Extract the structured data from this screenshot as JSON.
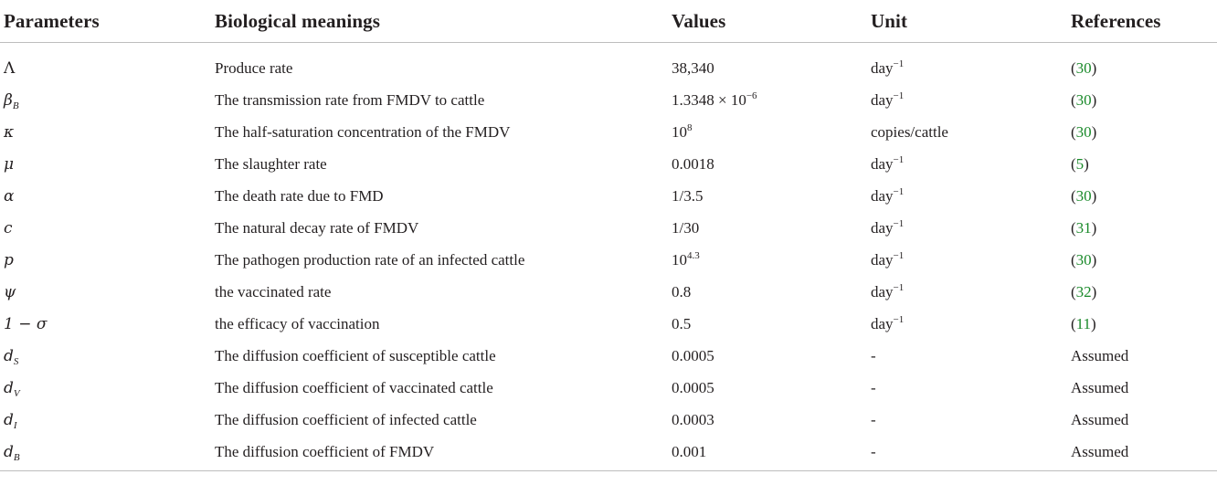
{
  "table": {
    "headers": [
      "Parameters",
      "Biological meanings",
      "Values",
      "Unit",
      "References"
    ],
    "rows": [
      {
        "param": "Λ",
        "param_sub": "",
        "meaning": "Produce rate",
        "value": "38,340",
        "value_sup": "",
        "unit": "day",
        "unit_sup": "−1",
        "ref_open": "(",
        "ref_num": "30",
        "ref_close": ")",
        "ref_text": ""
      },
      {
        "param": "β",
        "param_sub": "B",
        "meaning": "The transmission rate from FMDV to cattle",
        "value": "1.3348 × 10",
        "value_sup": "−6",
        "unit": "day",
        "unit_sup": "−1",
        "ref_open": "(",
        "ref_num": "30",
        "ref_close": ")",
        "ref_text": ""
      },
      {
        "param": "κ",
        "param_sub": "",
        "meaning": "The half-saturation concentration of the FMDV",
        "value": "10",
        "value_sup": "8",
        "unit": "copies/cattle",
        "unit_sup": "",
        "ref_open": "(",
        "ref_num": "30",
        "ref_close": ")",
        "ref_text": ""
      },
      {
        "param": "μ",
        "param_sub": "",
        "meaning": "The slaughter rate",
        "value": "0.0018",
        "value_sup": "",
        "unit": "day",
        "unit_sup": "−1",
        "ref_open": "(",
        "ref_num": "5",
        "ref_close": ")",
        "ref_text": ""
      },
      {
        "param": "α",
        "param_sub": "",
        "meaning": "The death rate due to FMD",
        "value": "1/3.5",
        "value_sup": "",
        "unit": "day",
        "unit_sup": "−1",
        "ref_open": "(",
        "ref_num": "30",
        "ref_close": ")",
        "ref_text": ""
      },
      {
        "param": "c",
        "param_sub": "",
        "meaning": "The natural decay rate of FMDV",
        "value": "1/30",
        "value_sup": "",
        "unit": "day",
        "unit_sup": "−1",
        "ref_open": "(",
        "ref_num": "31",
        "ref_close": ")",
        "ref_text": ""
      },
      {
        "param": "p",
        "param_sub": "",
        "meaning": "The pathogen production rate of an infected cattle",
        "value": "10",
        "value_sup": "4.3",
        "unit": "day",
        "unit_sup": "−1",
        "ref_open": "(",
        "ref_num": "30",
        "ref_close": ")",
        "ref_text": ""
      },
      {
        "param": "ψ",
        "param_sub": "",
        "meaning": "the vaccinated rate",
        "value": "0.8",
        "value_sup": "",
        "unit": "day",
        "unit_sup": "−1",
        "ref_open": "(",
        "ref_num": "32",
        "ref_close": ")",
        "ref_text": ""
      },
      {
        "param": "1 − σ",
        "param_sub": "",
        "meaning": "the efficacy of vaccination",
        "value": "0.5",
        "value_sup": "",
        "unit": "day",
        "unit_sup": "−1",
        "ref_open": "(",
        "ref_num": "11",
        "ref_close": ")",
        "ref_text": ""
      },
      {
        "param": "d",
        "param_sub": "S",
        "meaning": "The diffusion coefficient of susceptible cattle",
        "value": "0.0005",
        "value_sup": "",
        "unit": "-",
        "unit_sup": "",
        "ref_open": "",
        "ref_num": "",
        "ref_close": "",
        "ref_text": "Assumed"
      },
      {
        "param": "d",
        "param_sub": "V",
        "meaning": "The diffusion coefficient of vaccinated cattle",
        "value": "0.0005",
        "value_sup": "",
        "unit": "-",
        "unit_sup": "",
        "ref_open": "",
        "ref_num": "",
        "ref_close": "",
        "ref_text": "Assumed"
      },
      {
        "param": "d",
        "param_sub": "I",
        "meaning": "The diffusion coefficient of infected cattle",
        "value": "0.0003",
        "value_sup": "",
        "unit": "-",
        "unit_sup": "",
        "ref_open": "",
        "ref_num": "",
        "ref_close": "",
        "ref_text": "Assumed"
      },
      {
        "param": "d",
        "param_sub": "B",
        "meaning": "The diffusion coefficient of FMDV",
        "value": "0.001",
        "value_sup": "",
        "unit": "-",
        "unit_sup": "",
        "ref_open": "",
        "ref_num": "",
        "ref_close": "",
        "ref_text": "Assumed"
      }
    ]
  },
  "colors": {
    "text": "#231f20",
    "reference_link": "#1a8a2a",
    "rule": "#bdbdbd"
  }
}
